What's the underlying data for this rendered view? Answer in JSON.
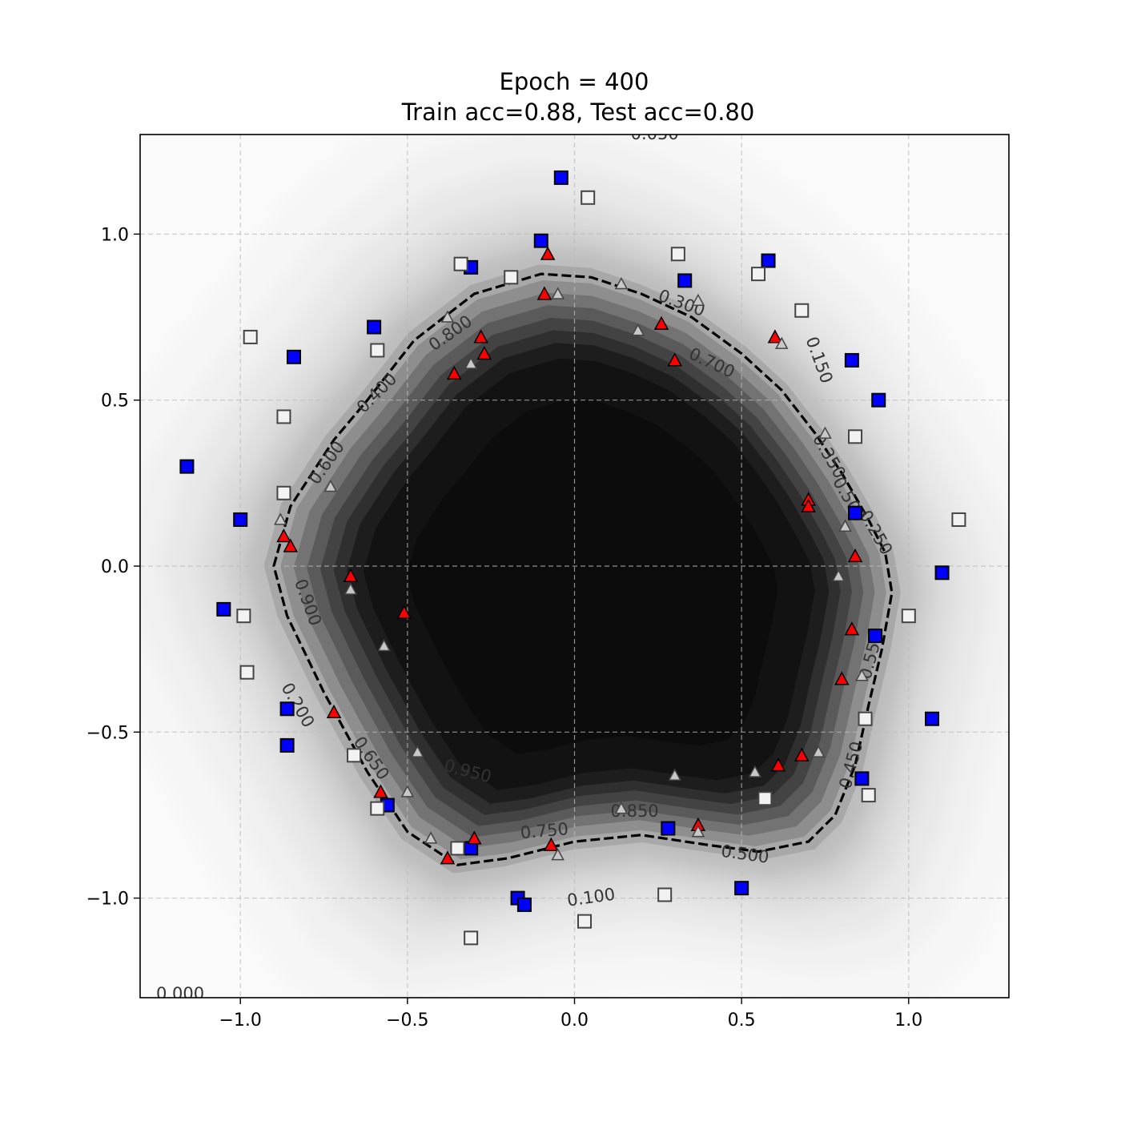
{
  "chart_data": {
    "type": "scatter",
    "title": "Epoch = 400",
    "subtitle": "Train acc=0.88, Test acc=0.80",
    "xlim": [
      -1.3,
      1.3
    ],
    "ylim": [
      -1.3,
      1.3
    ],
    "xticks": [
      -1.0,
      -0.5,
      0.0,
      0.5,
      1.0
    ],
    "yticks": [
      1.0,
      0.5,
      0.0,
      -0.5,
      -1.0
    ],
    "xtick_labels": [
      "−1.0",
      "−0.5",
      "0.0",
      "0.5",
      "1.0"
    ],
    "ytick_labels": [
      "1.0",
      "0.5",
      "0.0",
      "−0.5",
      "−1.0"
    ],
    "grid": true,
    "decision_boundary": {
      "level": 0.5,
      "points": [
        [
          -0.9,
          0.0
        ],
        [
          -0.85,
          0.18
        ],
        [
          -0.72,
          0.38
        ],
        [
          -0.62,
          0.5
        ],
        [
          -0.48,
          0.68
        ],
        [
          -0.3,
          0.82
        ],
        [
          -0.1,
          0.88
        ],
        [
          0.05,
          0.87
        ],
        [
          0.2,
          0.82
        ],
        [
          0.35,
          0.75
        ],
        [
          0.5,
          0.64
        ],
        [
          0.62,
          0.53
        ],
        [
          0.72,
          0.4
        ],
        [
          0.8,
          0.28
        ],
        [
          0.88,
          0.14
        ],
        [
          0.93,
          0.04
        ],
        [
          0.95,
          -0.08
        ],
        [
          0.92,
          -0.25
        ],
        [
          0.88,
          -0.42
        ],
        [
          0.84,
          -0.6
        ],
        [
          0.78,
          -0.75
        ],
        [
          0.7,
          -0.83
        ],
        [
          0.55,
          -0.86
        ],
        [
          0.4,
          -0.84
        ],
        [
          0.2,
          -0.81
        ],
        [
          0.0,
          -0.83
        ],
        [
          -0.2,
          -0.88
        ],
        [
          -0.35,
          -0.9
        ],
        [
          -0.5,
          -0.8
        ],
        [
          -0.62,
          -0.62
        ],
        [
          -0.75,
          -0.38
        ],
        [
          -0.86,
          -0.15
        ],
        [
          -0.9,
          0.0
        ]
      ]
    },
    "contour_labels": [
      {
        "text": "0.050",
        "x": 0.24,
        "y": 1.3,
        "rot": 0
      },
      {
        "text": "0.300",
        "x": 0.32,
        "y": 0.79,
        "rot": 20
      },
      {
        "text": "0.700",
        "x": 0.41,
        "y": 0.61,
        "rot": 25
      },
      {
        "text": "0.150",
        "x": 0.73,
        "y": 0.62,
        "rot": 70
      },
      {
        "text": "0.800",
        "x": -0.37,
        "y": 0.7,
        "rot": -35
      },
      {
        "text": "0.400",
        "x": -0.59,
        "y": 0.52,
        "rot": -45
      },
      {
        "text": "0.600",
        "x": -0.74,
        "y": 0.31,
        "rot": -55
      },
      {
        "text": "0.350",
        "x": 0.76,
        "y": 0.33,
        "rot": 60
      },
      {
        "text": "0.500",
        "x": 0.82,
        "y": 0.2,
        "rot": 60
      },
      {
        "text": "0.250",
        "x": 0.9,
        "y": 0.1,
        "rot": 60
      },
      {
        "text": "0.900",
        "x": -0.8,
        "y": -0.11,
        "rot": 70
      },
      {
        "text": "0.550",
        "x": 0.89,
        "y": -0.27,
        "rot": -75
      },
      {
        "text": "0.200",
        "x": -0.83,
        "y": -0.42,
        "rot": 60
      },
      {
        "text": "0.650",
        "x": -0.61,
        "y": -0.58,
        "rot": 55
      },
      {
        "text": "0.950",
        "x": -0.32,
        "y": -0.62,
        "rot": 15
      },
      {
        "text": "0.450",
        "x": 0.83,
        "y": -0.6,
        "rot": -75
      },
      {
        "text": "0.850",
        "x": 0.18,
        "y": -0.74,
        "rot": 0
      },
      {
        "text": "0.750",
        "x": -0.09,
        "y": -0.8,
        "rot": -5
      },
      {
        "text": "0.500",
        "x": 0.51,
        "y": -0.87,
        "rot": 8
      },
      {
        "text": "0.100",
        "x": 0.05,
        "y": -1.0,
        "rot": -8
      },
      {
        "text": "0.000",
        "x": -1.18,
        "y": -1.29,
        "rot": 0
      }
    ],
    "series": [
      {
        "name": "",
        "marker": "square",
        "split": "train",
        "color": "#0000ff",
        "points": [
          [
            -0.04,
            1.17
          ],
          [
            -0.1,
            0.98
          ],
          [
            0.58,
            0.92
          ],
          [
            0.33,
            0.86
          ],
          [
            -0.31,
            0.9
          ],
          [
            -0.6,
            0.72
          ],
          [
            -0.84,
            0.63
          ],
          [
            0.83,
            0.62
          ],
          [
            0.91,
            0.5
          ],
          [
            -1.16,
            0.3
          ],
          [
            -1.0,
            0.14
          ],
          [
            0.84,
            0.16
          ],
          [
            1.1,
            -0.02
          ],
          [
            -1.05,
            -0.13
          ],
          [
            0.9,
            -0.21
          ],
          [
            -0.86,
            -0.43
          ],
          [
            -0.86,
            -0.54
          ],
          [
            1.07,
            -0.46
          ],
          [
            0.86,
            -0.64
          ],
          [
            -0.56,
            -0.72
          ],
          [
            0.28,
            -0.79
          ],
          [
            -0.31,
            -0.85
          ],
          [
            -0.17,
            -1.0
          ],
          [
            -0.15,
            -1.02
          ],
          [
            0.5,
            -0.97
          ]
        ]
      },
      {
        "name": "",
        "marker": "square",
        "split": "test",
        "color": "#f2f2f2",
        "points": [
          [
            0.04,
            1.11
          ],
          [
            0.31,
            0.94
          ],
          [
            -0.34,
            0.91
          ],
          [
            -0.19,
            0.87
          ],
          [
            0.55,
            0.88
          ],
          [
            0.68,
            0.77
          ],
          [
            -0.97,
            0.69
          ],
          [
            -0.59,
            0.65
          ],
          [
            -0.87,
            0.45
          ],
          [
            0.84,
            0.39
          ],
          [
            -0.87,
            0.22
          ],
          [
            1.15,
            0.14
          ],
          [
            -0.99,
            -0.15
          ],
          [
            1.0,
            -0.15
          ],
          [
            -0.98,
            -0.32
          ],
          [
            0.87,
            -0.46
          ],
          [
            -0.66,
            -0.57
          ],
          [
            0.57,
            -0.7
          ],
          [
            0.88,
            -0.69
          ],
          [
            -0.59,
            -0.73
          ],
          [
            -0.35,
            -0.85
          ],
          [
            0.27,
            -0.99
          ],
          [
            0.03,
            -1.07
          ],
          [
            -0.31,
            -1.12
          ]
        ]
      },
      {
        "name": "",
        "marker": "triangle",
        "split": "train",
        "color": "#ff0000",
        "points": [
          [
            -0.08,
            0.94
          ],
          [
            -0.09,
            0.82
          ],
          [
            0.6,
            0.69
          ],
          [
            0.26,
            0.73
          ],
          [
            -0.28,
            0.69
          ],
          [
            -0.27,
            0.64
          ],
          [
            0.3,
            0.62
          ],
          [
            -0.36,
            0.58
          ],
          [
            0.7,
            0.2
          ],
          [
            0.7,
            0.18
          ],
          [
            -0.87,
            0.09
          ],
          [
            -0.85,
            0.06
          ],
          [
            0.84,
            0.03
          ],
          [
            -0.67,
            -0.03
          ],
          [
            -0.51,
            -0.14
          ],
          [
            0.83,
            -0.19
          ],
          [
            0.8,
            -0.34
          ],
          [
            -0.72,
            -0.44
          ],
          [
            0.61,
            -0.6
          ],
          [
            0.68,
            -0.57
          ],
          [
            -0.58,
            -0.68
          ],
          [
            0.37,
            -0.78
          ],
          [
            -0.3,
            -0.82
          ],
          [
            -0.07,
            -0.84
          ],
          [
            -0.38,
            -0.88
          ]
        ]
      },
      {
        "name": "",
        "marker": "triangle",
        "split": "test",
        "color": "#c8c8c8",
        "points": [
          [
            0.14,
            0.85
          ],
          [
            -0.05,
            0.82
          ],
          [
            0.37,
            0.8
          ],
          [
            -0.38,
            0.75
          ],
          [
            0.19,
            0.71
          ],
          [
            0.62,
            0.67
          ],
          [
            -0.31,
            0.61
          ],
          [
            0.75,
            0.4
          ],
          [
            -0.73,
            0.24
          ],
          [
            -0.88,
            0.14
          ],
          [
            0.81,
            0.12
          ],
          [
            0.79,
            -0.03
          ],
          [
            -0.67,
            -0.07
          ],
          [
            -0.57,
            -0.24
          ],
          [
            0.86,
            -0.33
          ],
          [
            -0.47,
            -0.56
          ],
          [
            0.73,
            -0.56
          ],
          [
            0.54,
            -0.62
          ],
          [
            0.3,
            -0.63
          ],
          [
            -0.5,
            -0.68
          ],
          [
            0.14,
            -0.73
          ],
          [
            0.37,
            -0.8
          ],
          [
            -0.43,
            -0.82
          ],
          [
            -0.05,
            -0.87
          ]
        ]
      }
    ]
  }
}
